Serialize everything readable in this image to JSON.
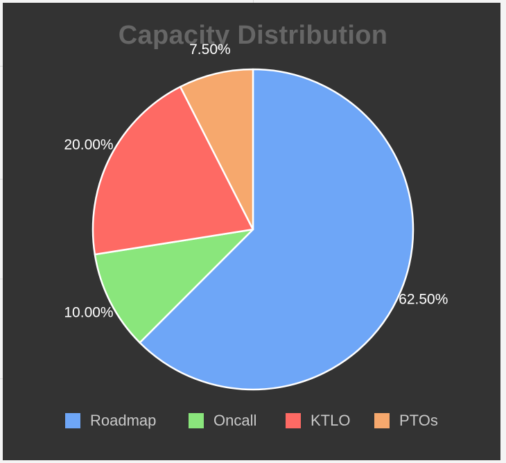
{
  "chart_data": {
    "type": "pie",
    "title": "Capacity Distribution",
    "categories": [
      "Roadmap",
      "Oncall",
      "KTLO",
      "PTOs"
    ],
    "values": [
      62.5,
      10.0,
      20.0,
      7.5
    ],
    "labels": [
      "62.50%",
      "10.00%",
      "20.00%",
      "7.50%"
    ],
    "colors": [
      "#6ea6f7",
      "#8ae67c",
      "#fe6a64",
      "#f6a86d"
    ],
    "legend_position": "bottom",
    "label_color": "#ffffff",
    "background": "#333333"
  }
}
